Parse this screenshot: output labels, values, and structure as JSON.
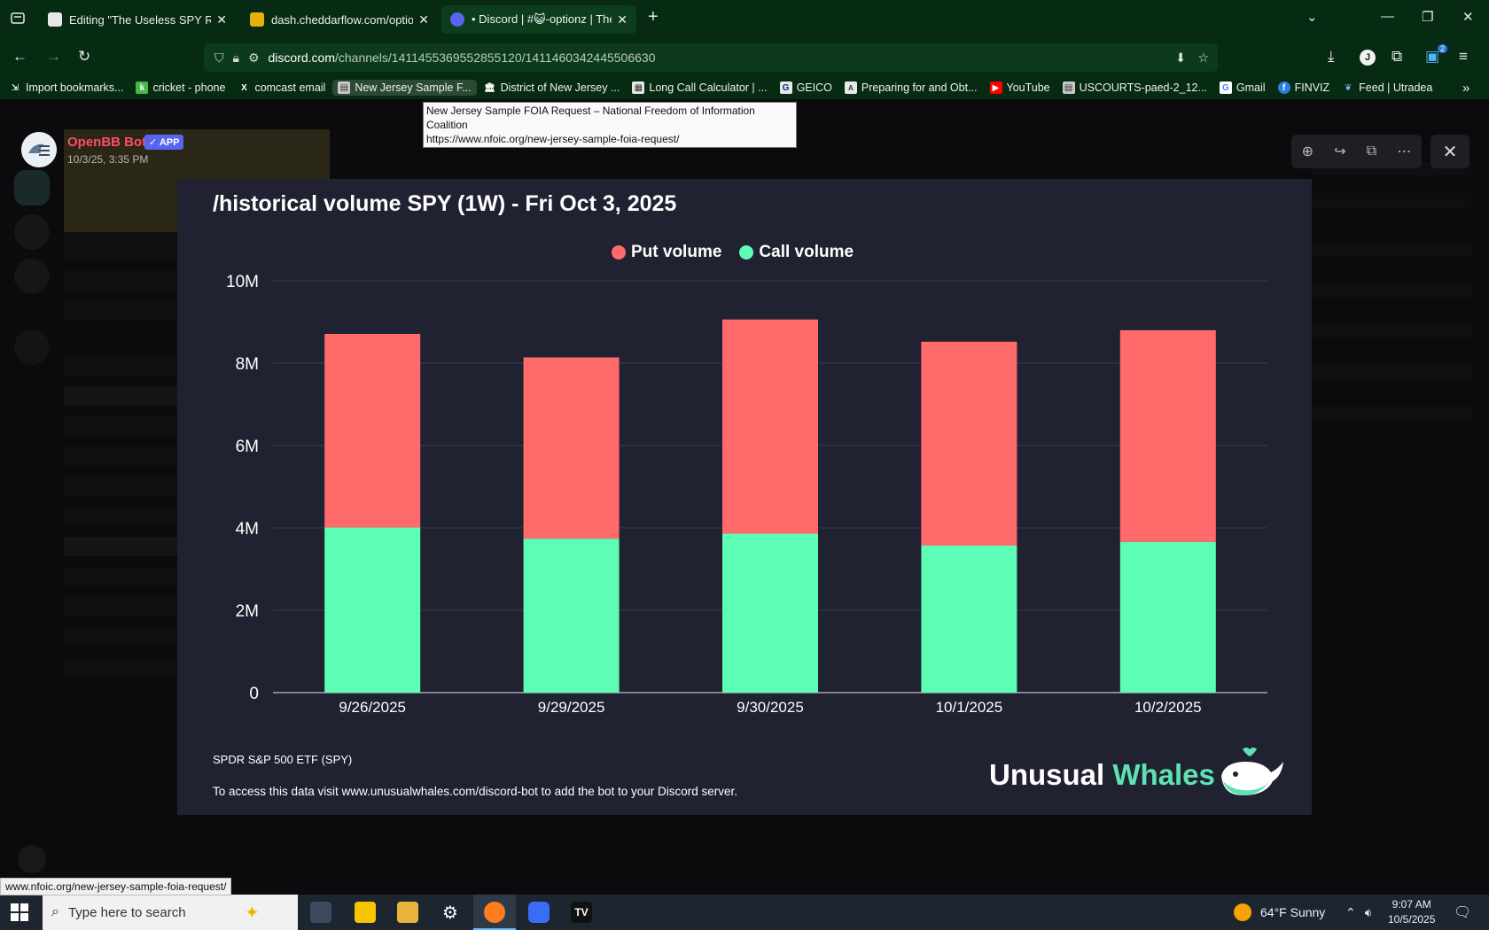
{
  "browser": {
    "tabs": [
      {
        "title": "Editing \"The Useless SPY Report",
        "active": false
      },
      {
        "title": "dash.cheddarflow.com/options-",
        "active": false
      },
      {
        "title": "• Discord | #😺-optionz | The U",
        "active": true
      }
    ],
    "url_domain": "discord.com",
    "url_path": "/channels/1411455369552855120/1411460342445506630",
    "bookmarks": [
      "Import bookmarks...",
      "cricket - phone",
      "comcast email",
      "New Jersey Sample F...",
      "District of New Jersey ...",
      "Long Call Calculator | ...",
      "GEICO",
      "Preparing for and Obt...",
      "YouTube",
      "USCOURTS-paed-2_12...",
      "Gmail",
      "FINVIZ",
      "Feed | Utradea"
    ],
    "tooltip_line1": "New Jersey Sample FOIA Request – National Freedom of Information Coalition",
    "tooltip_line2": "https://www.nfoic.org/new-jersey-sample-foia-request/",
    "status_url": "www.nfoic.org/new-jersey-sample-foia-request/",
    "extension_badge": "2"
  },
  "viewer": {
    "author": "OpenBB Bot",
    "badge": "✓ APP",
    "timestamp": "10/3/25, 3:35 PM"
  },
  "image": {
    "footnote_ticker": "SPDR S&P 500 ETF (SPY)",
    "footnote_access": "To access this data visit www.unusualwhales.com/discord-bot to add the bot to your Discord server.",
    "brand_word1": "Unusual",
    "brand_word2": "Whales"
  },
  "chart_data": {
    "type": "bar",
    "stacked": true,
    "title": "/historical volume SPY (1W) - Fri Oct 3, 2025",
    "categories": [
      "9/26/2025",
      "9/29/2025",
      "9/30/2025",
      "10/1/2025",
      "10/2/2025"
    ],
    "series": [
      {
        "name": "Call volume",
        "color": "#5dfdb5",
        "values": [
          4010000,
          3740000,
          3860000,
          3570000,
          3660000
        ]
      },
      {
        "name": "Put volume",
        "color": "#ff6b6b",
        "values": [
          4700000,
          4400000,
          5200000,
          4950000,
          5140000
        ]
      }
    ],
    "legend_order": [
      "Put volume",
      "Call volume"
    ],
    "y_ticks": [
      "0",
      "2M",
      "4M",
      "6M",
      "8M",
      "10M"
    ],
    "ylim": [
      0,
      10000000
    ],
    "grid": true,
    "legend_position": "top-center"
  },
  "taskbar": {
    "search_placeholder": "Type here to search",
    "weather": "64°F  Sunny",
    "time": "9:07 AM",
    "date": "10/5/2025"
  }
}
